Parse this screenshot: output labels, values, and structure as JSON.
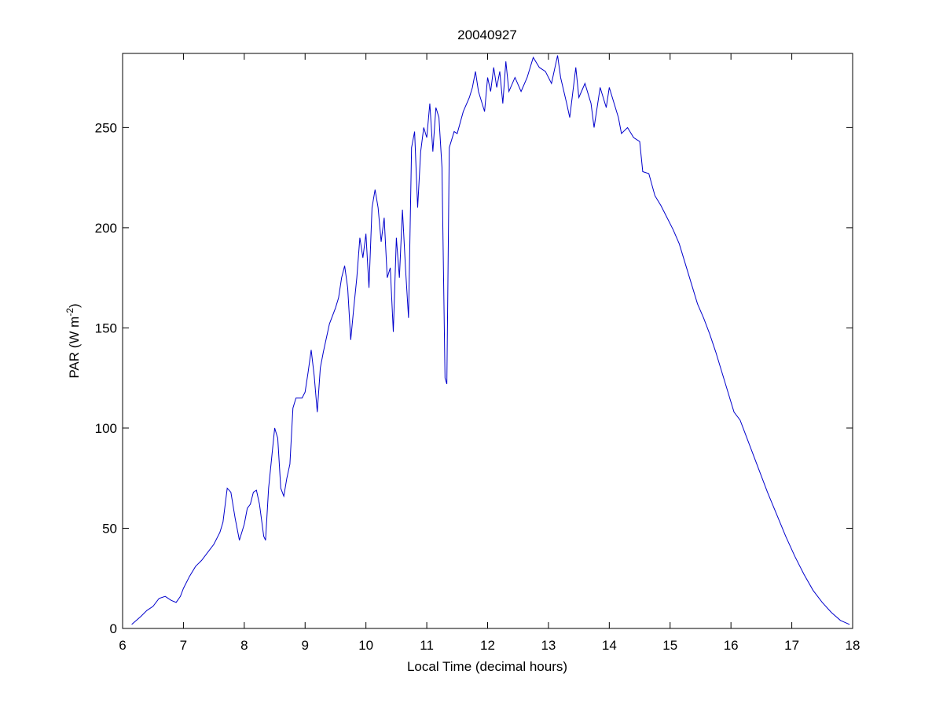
{
  "chart_data": {
    "type": "line",
    "title": "20040927",
    "x_label": "Local Time (decimal hours)",
    "y_label_parts": [
      "PAR (W m",
      "-2",
      ")"
    ],
    "xlim": [
      6,
      18
    ],
    "xticks": [
      6,
      7,
      8,
      9,
      10,
      11,
      12,
      13,
      14,
      15,
      16,
      17,
      18
    ],
    "ylim": [
      0,
      287
    ],
    "yticks": [
      0,
      50,
      100,
      150,
      200,
      250
    ],
    "grid": false,
    "series": [
      {
        "color": "#0000cc",
        "x": [
          6.15,
          6.3,
          6.4,
          6.5,
          6.6,
          6.7,
          6.8,
          6.88,
          6.95,
          7.0,
          7.1,
          7.2,
          7.3,
          7.4,
          7.5,
          7.6,
          7.65,
          7.72,
          7.78,
          7.85,
          7.92,
          8.0,
          8.05,
          8.1,
          8.15,
          8.2,
          8.25,
          8.32,
          8.35,
          8.4,
          8.45,
          8.5,
          8.55,
          8.6,
          8.65,
          8.7,
          8.75,
          8.8,
          8.85,
          8.95,
          9.0,
          9.05,
          9.1,
          9.15,
          9.2,
          9.25,
          9.3,
          9.4,
          9.5,
          9.55,
          9.6,
          9.65,
          9.7,
          9.75,
          9.8,
          9.85,
          9.9,
          9.95,
          10.0,
          10.05,
          10.1,
          10.15,
          10.2,
          10.25,
          10.3,
          10.35,
          10.4,
          10.45,
          10.5,
          10.55,
          10.6,
          10.65,
          10.7,
          10.75,
          10.8,
          10.85,
          10.9,
          10.95,
          11.0,
          11.05,
          11.1,
          11.15,
          11.2,
          11.25,
          11.3,
          11.33,
          11.37,
          11.45,
          11.5,
          11.6,
          11.7,
          11.75,
          11.8,
          11.85,
          11.95,
          12.0,
          12.05,
          12.1,
          12.15,
          12.2,
          12.25,
          12.3,
          12.35,
          12.45,
          12.55,
          12.65,
          12.75,
          12.85,
          12.95,
          13.05,
          13.15,
          13.2,
          13.3,
          13.35,
          13.45,
          13.5,
          13.6,
          13.7,
          13.75,
          13.85,
          13.95,
          14.0,
          14.1,
          14.15,
          14.2,
          14.3,
          14.4,
          14.5,
          14.55,
          14.65,
          14.75,
          14.85,
          14.95,
          15.05,
          15.15,
          15.25,
          15.35,
          15.45,
          15.55,
          15.65,
          15.75,
          15.85,
          15.95,
          16.05,
          16.15,
          16.3,
          16.45,
          16.6,
          16.75,
          16.9,
          17.05,
          17.2,
          17.35,
          17.5,
          17.65,
          17.8,
          17.95
        ],
        "values": [
          2,
          6,
          9,
          11,
          15,
          16,
          14,
          13,
          16,
          20,
          26,
          31,
          34,
          38,
          42,
          48,
          53,
          70,
          68,
          55,
          44,
          52,
          60,
          62,
          68,
          69,
          62,
          46,
          44,
          70,
          85,
          100,
          95,
          70,
          66,
          75,
          82,
          110,
          115,
          115,
          118,
          128,
          139,
          126,
          108,
          130,
          138,
          152,
          160,
          165,
          175,
          181,
          170,
          144,
          160,
          175,
          195,
          185,
          197,
          170,
          210,
          219,
          210,
          193,
          205,
          175,
          180,
          148,
          195,
          175,
          209,
          180,
          155,
          240,
          248,
          210,
          238,
          250,
          245,
          262,
          238,
          260,
          255,
          230,
          125,
          122,
          240,
          248,
          247,
          258,
          265,
          270,
          278,
          268,
          258,
          275,
          268,
          280,
          270,
          278,
          262,
          283,
          268,
          275,
          268,
          275,
          285,
          280,
          278,
          272,
          286,
          275,
          262,
          255,
          280,
          265,
          272,
          262,
          250,
          270,
          260,
          270,
          260,
          255,
          247,
          250,
          245,
          243,
          228,
          227,
          216,
          211,
          205,
          199,
          192,
          182,
          172,
          162,
          155,
          147,
          138,
          128,
          118,
          108,
          104,
          92,
          80,
          68,
          57,
          46,
          36,
          27,
          19,
          13,
          8,
          4,
          2
        ]
      }
    ]
  }
}
